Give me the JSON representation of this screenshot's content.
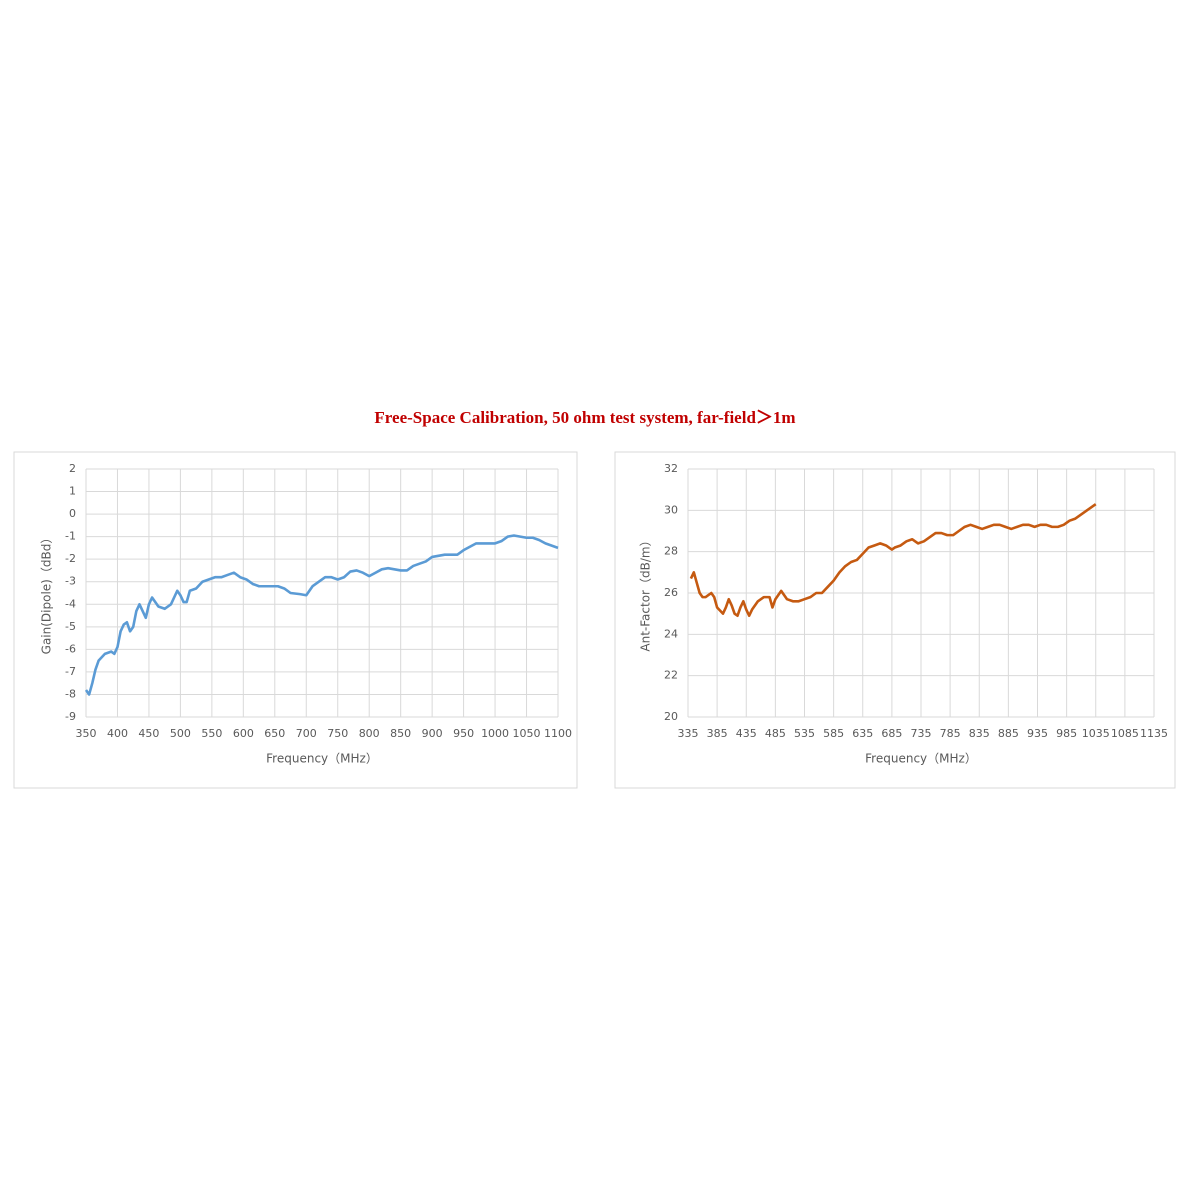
{
  "title": "Free-Space Calibration,  50 ohm  test system,  far-field＞1m",
  "chart_data": [
    {
      "type": "line",
      "x_label": "Frequency（MHz）",
      "y_label": "Gain(Dipole)（dBd）",
      "color": "#5b9bd5",
      "grid": true,
      "xlim": [
        350,
        1100
      ],
      "xticks": [
        350,
        400,
        450,
        500,
        550,
        600,
        650,
        700,
        750,
        800,
        850,
        900,
        950,
        1000,
        1050,
        1100
      ],
      "ylim": [
        -9,
        2
      ],
      "yticks": [
        -9,
        -8,
        -7,
        -6,
        -5,
        -4,
        -3,
        -2,
        -1,
        0,
        1,
        2
      ],
      "x": [
        350,
        355,
        360,
        365,
        370,
        380,
        390,
        395,
        400,
        405,
        410,
        415,
        420,
        425,
        430,
        435,
        440,
        445,
        450,
        455,
        460,
        465,
        475,
        485,
        495,
        500,
        505,
        510,
        515,
        525,
        535,
        545,
        555,
        565,
        575,
        585,
        595,
        605,
        615,
        625,
        640,
        655,
        665,
        675,
        690,
        700,
        710,
        720,
        730,
        740,
        750,
        760,
        770,
        780,
        790,
        800,
        810,
        820,
        830,
        840,
        850,
        860,
        870,
        880,
        890,
        900,
        910,
        920,
        940,
        950,
        960,
        970,
        980,
        1000,
        1010,
        1020,
        1030,
        1040,
        1050,
        1060,
        1070,
        1080,
        1090,
        1100
      ],
      "values": [
        -7.8,
        -8.0,
        -7.5,
        -6.9,
        -6.5,
        -6.2,
        -6.1,
        -6.2,
        -5.9,
        -5.2,
        -4.9,
        -4.8,
        -5.2,
        -5.0,
        -4.3,
        -4.0,
        -4.3,
        -4.6,
        -4.0,
        -3.7,
        -3.9,
        -4.1,
        -4.2,
        -4.0,
        -3.4,
        -3.6,
        -3.9,
        -3.9,
        -3.4,
        -3.3,
        -3.0,
        -2.9,
        -2.8,
        -2.8,
        -2.7,
        -2.6,
        -2.8,
        -2.9,
        -3.1,
        -3.2,
        -3.2,
        -3.2,
        -3.3,
        -3.5,
        -3.55,
        -3.6,
        -3.2,
        -3.0,
        -2.8,
        -2.8,
        -2.9,
        -2.8,
        -2.55,
        -2.5,
        -2.6,
        -2.75,
        -2.6,
        -2.45,
        -2.4,
        -2.45,
        -2.5,
        -2.5,
        -2.3,
        -2.2,
        -2.1,
        -1.9,
        -1.85,
        -1.8,
        -1.8,
        -1.6,
        -1.45,
        -1.3,
        -1.3,
        -1.3,
        -1.2,
        -1.0,
        -0.95,
        -1.0,
        -1.05,
        -1.05,
        -1.15,
        -1.3,
        -1.4,
        -1.5
      ]
    },
    {
      "type": "line",
      "x_label": "Frequency（MHz）",
      "y_label": "Ant-Factor（dB/m）",
      "color": "#c55a11",
      "grid": true,
      "xlim": [
        335,
        1135
      ],
      "xticks": [
        335,
        385,
        435,
        485,
        535,
        585,
        635,
        685,
        735,
        785,
        835,
        885,
        935,
        985,
        1035,
        1085,
        1135
      ],
      "ylim": [
        20,
        32
      ],
      "yticks": [
        20,
        22,
        24,
        26,
        28,
        30,
        32
      ],
      "x": [
        340,
        345,
        350,
        355,
        360,
        365,
        370,
        375,
        380,
        385,
        395,
        400,
        405,
        410,
        415,
        420,
        425,
        430,
        435,
        440,
        445,
        455,
        465,
        475,
        480,
        485,
        495,
        505,
        515,
        525,
        535,
        545,
        555,
        565,
        575,
        585,
        595,
        605,
        615,
        625,
        635,
        645,
        655,
        665,
        675,
        685,
        690,
        700,
        710,
        720,
        730,
        740,
        750,
        760,
        770,
        780,
        790,
        800,
        810,
        820,
        830,
        840,
        850,
        860,
        870,
        880,
        890,
        900,
        910,
        920,
        930,
        940,
        950,
        960,
        970,
        980,
        990,
        1000,
        1010,
        1020,
        1030,
        1035
      ],
      "values": [
        26.7,
        27.0,
        26.5,
        26.0,
        25.8,
        25.8,
        25.9,
        26.0,
        25.8,
        25.3,
        25.0,
        25.3,
        25.7,
        25.4,
        25.0,
        24.9,
        25.3,
        25.6,
        25.2,
        24.9,
        25.2,
        25.6,
        25.8,
        25.8,
        25.3,
        25.7,
        26.1,
        25.7,
        25.6,
        25.6,
        25.7,
        25.8,
        26.0,
        26.0,
        26.3,
        26.6,
        27.0,
        27.3,
        27.5,
        27.6,
        27.9,
        28.2,
        28.3,
        28.4,
        28.3,
        28.1,
        28.2,
        28.3,
        28.5,
        28.6,
        28.4,
        28.5,
        28.7,
        28.9,
        28.9,
        28.8,
        28.8,
        29.0,
        29.2,
        29.3,
        29.2,
        29.1,
        29.2,
        29.3,
        29.3,
        29.2,
        29.1,
        29.2,
        29.3,
        29.3,
        29.2,
        29.3,
        29.3,
        29.2,
        29.2,
        29.3,
        29.5,
        29.6,
        29.8,
        30.0,
        30.2,
        30.3
      ]
    }
  ]
}
